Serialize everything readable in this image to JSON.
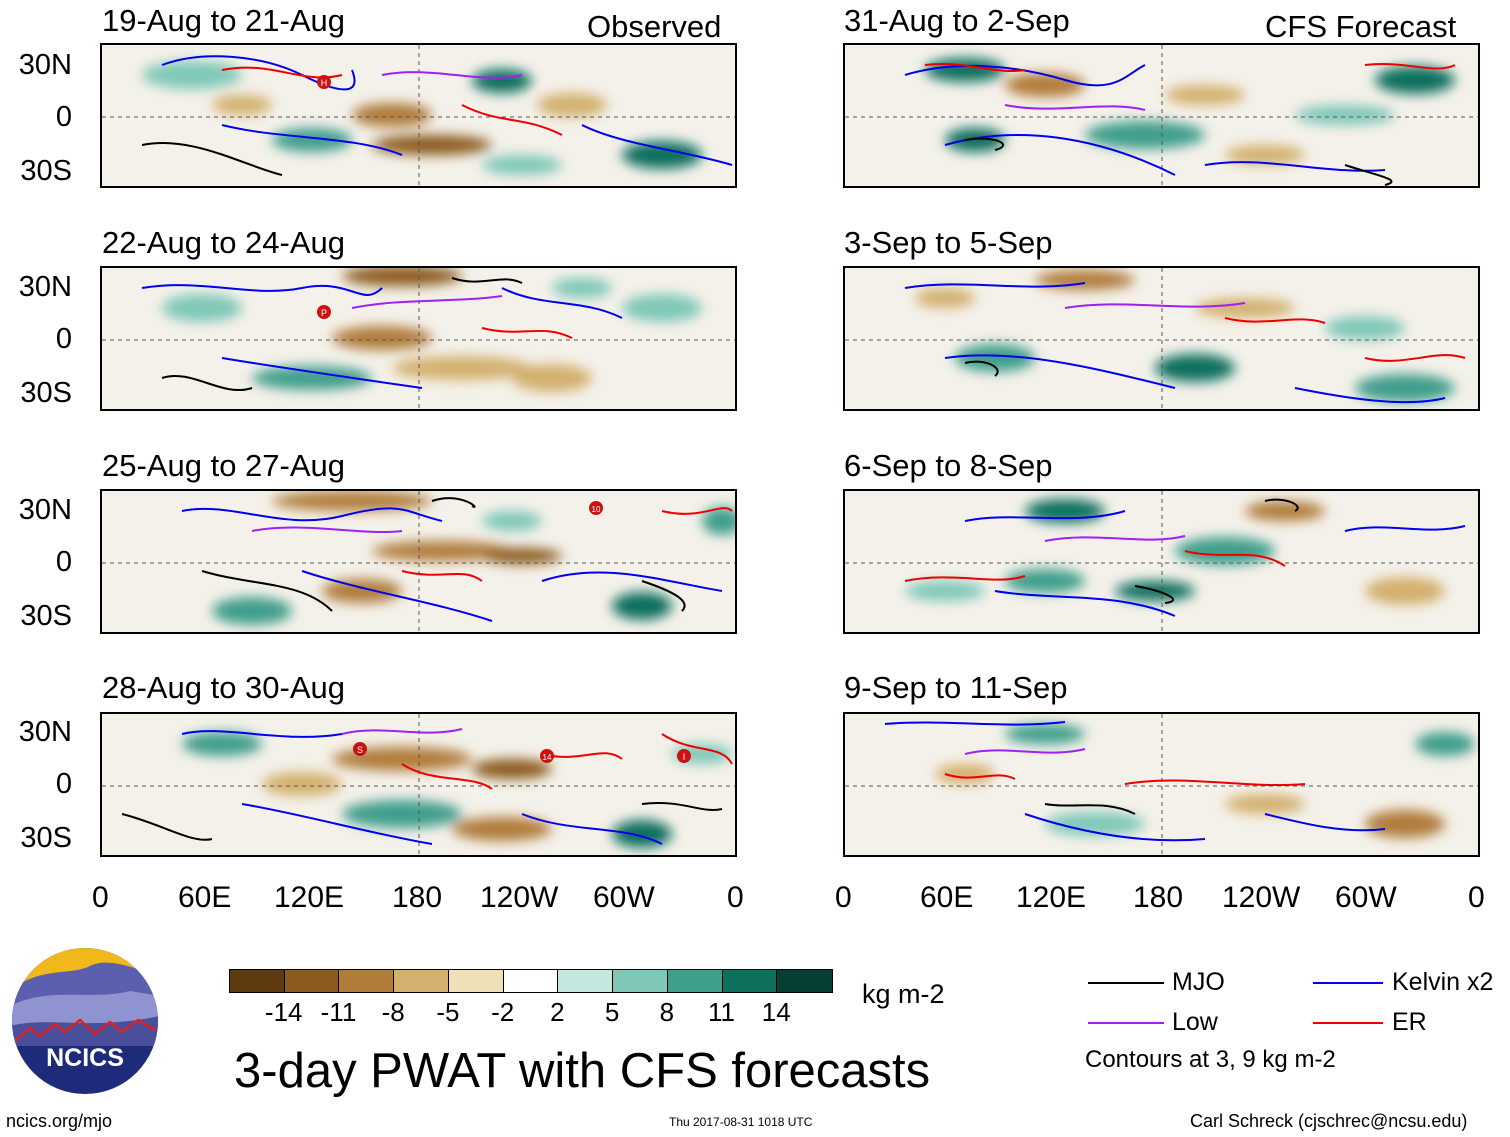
{
  "header": {
    "observed_label": "Observed",
    "forecast_label": "CFS Forecast"
  },
  "observed_panels": [
    {
      "title": "19-Aug to 21-Aug"
    },
    {
      "title": "22-Aug to 24-Aug"
    },
    {
      "title": "25-Aug to 27-Aug"
    },
    {
      "title": "28-Aug to 30-Aug"
    }
  ],
  "forecast_panels": [
    {
      "title": "31-Aug to 2-Sep"
    },
    {
      "title": "3-Sep to 5-Sep"
    },
    {
      "title": "6-Sep to 8-Sep"
    },
    {
      "title": "9-Sep to 11-Sep"
    }
  ],
  "axes": {
    "lat_labels": [
      "30N",
      "0",
      "30S"
    ],
    "lon_labels": [
      "0",
      "60E",
      "120E",
      "180",
      "120W",
      "60W",
      "0"
    ]
  },
  "storm_markers": [
    "H",
    "P",
    "10",
    "S",
    "14",
    "I"
  ],
  "colorbar": {
    "ticks": [
      "-14",
      "-11",
      "-8",
      "-5",
      "-2",
      "2",
      "5",
      "8",
      "11",
      "14"
    ],
    "colors": [
      "#5e3a0e",
      "#8a5a1e",
      "#b07c3a",
      "#d3b06e",
      "#efe0b8",
      "#ffffff",
      "#c4e8e0",
      "#7fc8b8",
      "#3f9e8c",
      "#10705e",
      "#063f33"
    ],
    "units": "kg m-2"
  },
  "legend": {
    "items": [
      {
        "label": "MJO",
        "color": "#000000"
      },
      {
        "label": "Kelvin x2",
        "color": "#0000ee"
      },
      {
        "label": "Low",
        "color": "#a020f0"
      },
      {
        "label": "ER",
        "color": "#ee0000"
      }
    ],
    "note": "Contours at 3, 9 kg m-2"
  },
  "logo": {
    "text": "NCICS"
  },
  "footer": {
    "title": "3-day PWAT with CFS forecasts",
    "url": "ncics.org/mjo",
    "timestamp": "Thu 2017-08-31 1018 UTC",
    "credit": "Carl Schreck (cjschrec@ncsu.edu)"
  }
}
